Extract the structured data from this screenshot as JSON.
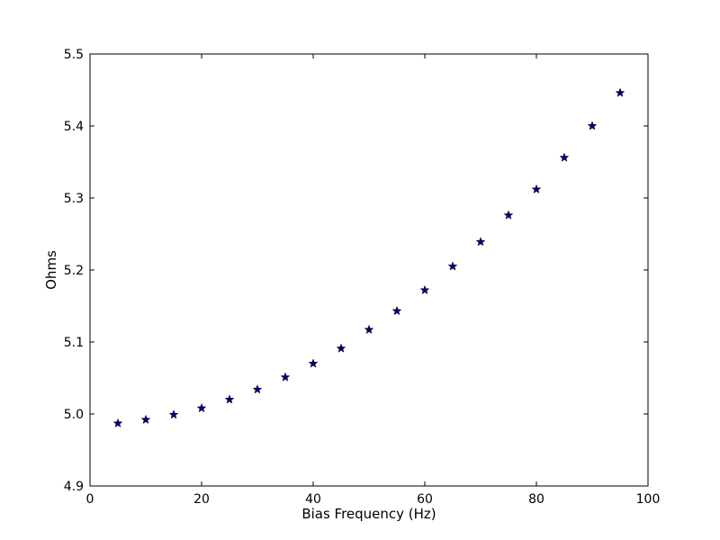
{
  "chart_data": {
    "type": "scatter",
    "title": "",
    "xlabel": "Bias Frequency (Hz)",
    "ylabel": "Ohms",
    "xlim": [
      0,
      100
    ],
    "ylim": [
      4.9,
      5.5
    ],
    "xticks": [
      0,
      20,
      40,
      60,
      80,
      100
    ],
    "xtick_labels": [
      "0",
      "20",
      "40",
      "60",
      "80",
      "100"
    ],
    "yticks": [
      4.9,
      5.0,
      5.1,
      5.2,
      5.3,
      5.4,
      5.5
    ],
    "ytick_labels": [
      "4.9",
      "5.0",
      "5.1",
      "5.2",
      "5.3",
      "5.4",
      "5.5"
    ],
    "grid": false,
    "marker": "star",
    "marker_color": "#000080",
    "series": [
      {
        "x": [
          5,
          10,
          15,
          20,
          25,
          30,
          35,
          40,
          45,
          50,
          55,
          60,
          65,
          70,
          75,
          80,
          85,
          90,
          95
        ],
        "y": [
          4.987,
          4.992,
          4.999,
          5.008,
          5.02,
          5.034,
          5.051,
          5.07,
          5.091,
          5.117,
          5.143,
          5.172,
          5.205,
          5.239,
          5.276,
          5.312,
          5.356,
          5.4,
          5.446
        ]
      }
    ]
  }
}
